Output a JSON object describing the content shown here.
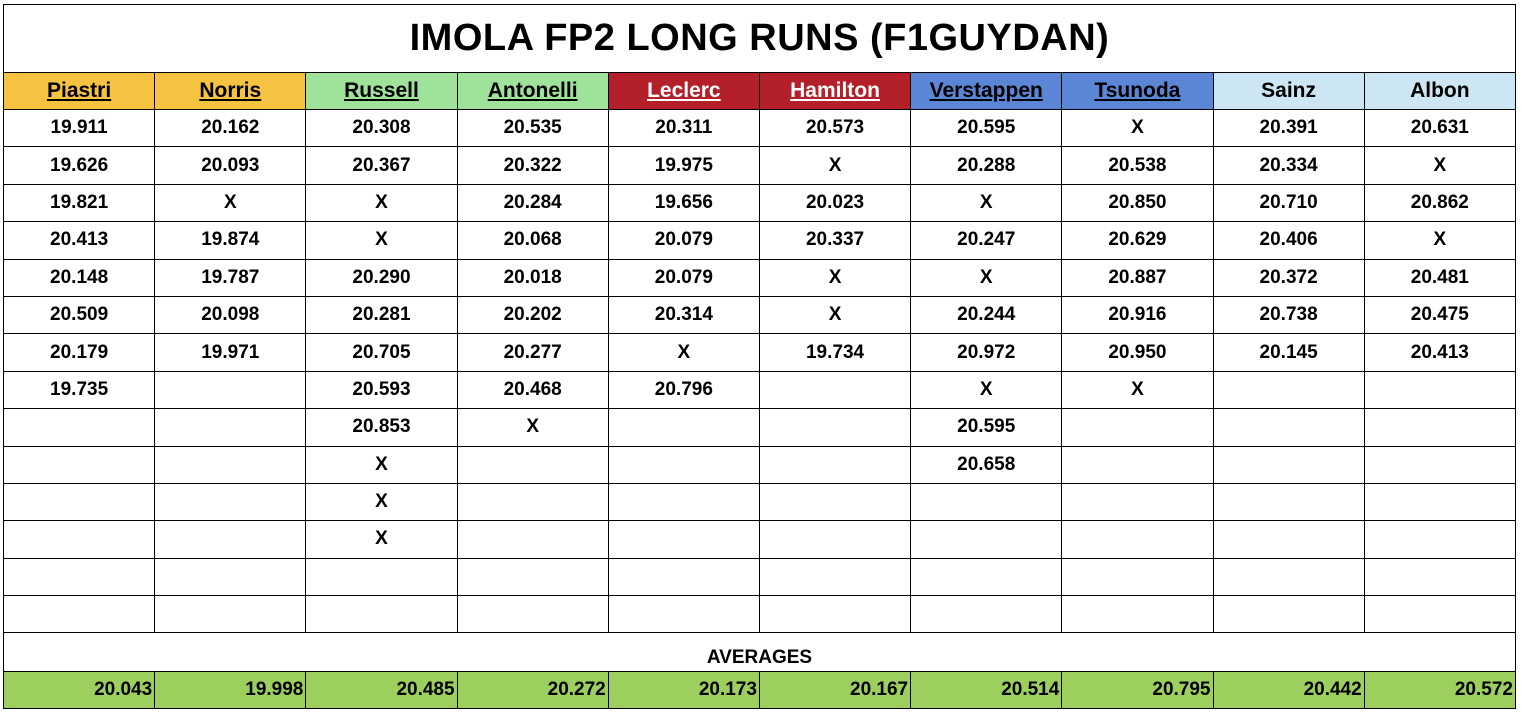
{
  "title": "IMOLA FP2 LONG RUNS (F1GUYDAN)",
  "drivers": [
    {
      "name": "Piastri",
      "bg": "#f5c242",
      "color": "#000000",
      "underline": true
    },
    {
      "name": "Norris",
      "bg": "#f5c242",
      "color": "#000000",
      "underline": true
    },
    {
      "name": "Russell",
      "bg": "#9fe29a",
      "color": "#000000",
      "underline": true
    },
    {
      "name": "Antonelli",
      "bg": "#9fe29a",
      "color": "#000000",
      "underline": true
    },
    {
      "name": "Leclerc",
      "bg": "#b3202a",
      "color": "#ffffff",
      "underline": true
    },
    {
      "name": "Hamilton",
      "bg": "#b3202a",
      "color": "#ffffff",
      "underline": true
    },
    {
      "name": "Verstappen",
      "bg": "#5b86d6",
      "color": "#000000",
      "underline": true
    },
    {
      "name": "Tsunoda",
      "bg": "#5b86d6",
      "color": "#000000",
      "underline": true
    },
    {
      "name": "Sainz",
      "bg": "#cde6f4",
      "color": "#000000",
      "underline": false
    },
    {
      "name": "Albon",
      "bg": "#cde6f4",
      "color": "#000000",
      "underline": false
    }
  ],
  "rows": [
    [
      "19.911",
      "20.162",
      "20.308",
      "20.535",
      "20.311",
      "20.573",
      "20.595",
      "X",
      "20.391",
      "20.631"
    ],
    [
      "19.626",
      "20.093",
      "20.367",
      "20.322",
      "19.975",
      "X",
      "20.288",
      "20.538",
      "20.334",
      "X"
    ],
    [
      "19.821",
      "X",
      "X",
      "20.284",
      "19.656",
      "20.023",
      "X",
      "20.850",
      "20.710",
      "20.862"
    ],
    [
      "20.413",
      "19.874",
      "X",
      "20.068",
      "20.079",
      "20.337",
      "20.247",
      "20.629",
      "20.406",
      "X"
    ],
    [
      "20.148",
      "19.787",
      "20.290",
      "20.018",
      "20.079",
      "X",
      "X",
      "20.887",
      "20.372",
      "20.481"
    ],
    [
      "20.509",
      "20.098",
      "20.281",
      "20.202",
      "20.314",
      "X",
      "20.244",
      "20.916",
      "20.738",
      "20.475"
    ],
    [
      "20.179",
      "19.971",
      "20.705",
      "20.277",
      "X",
      "19.734",
      "20.972",
      "20.950",
      "20.145",
      "20.413"
    ],
    [
      "19.735",
      "",
      "20.593",
      "20.468",
      "20.796",
      "",
      "X",
      "X",
      "",
      ""
    ],
    [
      "",
      "",
      "20.853",
      "X",
      "",
      "",
      "20.595",
      "",
      "",
      ""
    ],
    [
      "",
      "",
      "X",
      "",
      "",
      "",
      "20.658",
      "",
      "",
      ""
    ],
    [
      "",
      "",
      "X",
      "",
      "",
      "",
      "",
      "",
      "",
      ""
    ],
    [
      "",
      "",
      "X",
      "",
      "",
      "",
      "",
      "",
      "",
      ""
    ],
    [
      "",
      "",
      "",
      "",
      "",
      "",
      "",
      "",
      "",
      ""
    ],
    [
      "",
      "",
      "",
      "",
      "",
      "",
      "",
      "",
      "",
      ""
    ]
  ],
  "averages_label": "AVERAGES",
  "averages": [
    "20.043",
    "19.998",
    "20.485",
    "20.272",
    "20.173",
    "20.167",
    "20.514",
    "20.795",
    "20.442",
    "20.572"
  ],
  "colors": {
    "averages_bg": "#9dcf5f",
    "border": "#000000"
  }
}
